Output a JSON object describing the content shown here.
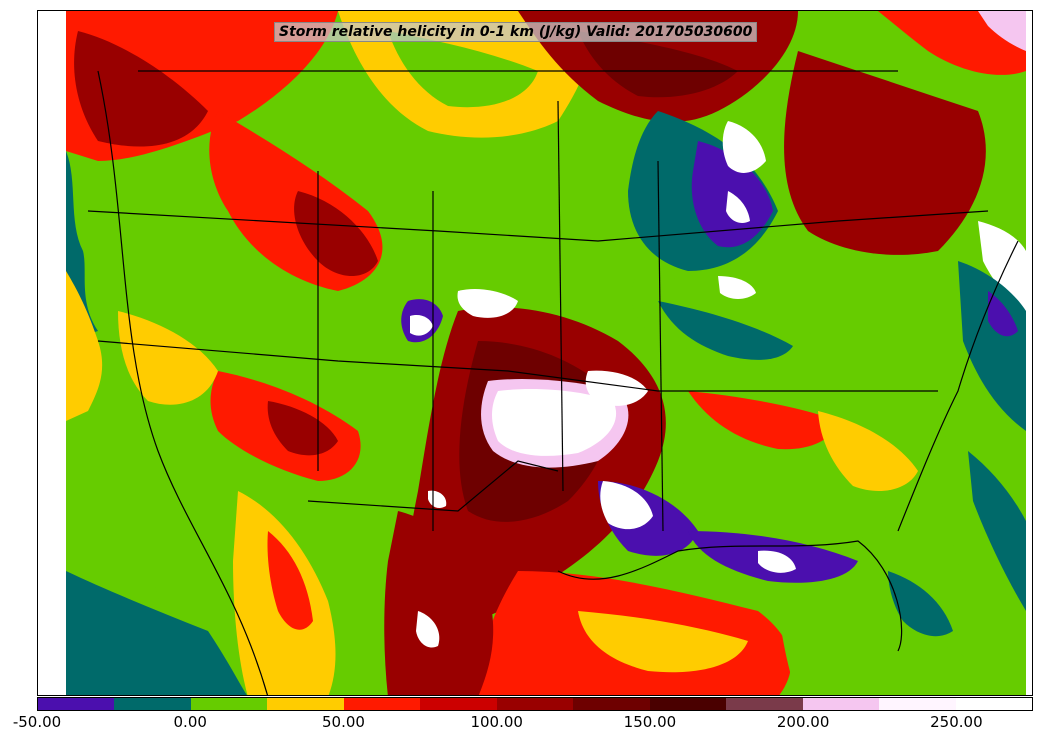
{
  "map": {
    "title": "Storm relative helicity in 0-1 km (J/kg) Valid: 201705030600",
    "region": "Contiguous United States"
  },
  "legend": {
    "colors": [
      "#4b0fae",
      "#006a6a",
      "#66cc00",
      "#ffcc00",
      "#ff1a00",
      "#cc0000",
      "#990000",
      "#6e0000",
      "#4a0000",
      "#7a3a4a",
      "#f5c6f0",
      "#fff5ff",
      "#ffffff"
    ],
    "tick_labels": [
      "-50.00",
      "0.00",
      "50.00",
      "100.00",
      "150.00",
      "200.00",
      "250.00"
    ],
    "tick_values": [
      -50,
      0,
      50,
      100,
      150,
      200,
      250
    ],
    "range": [
      -50,
      275
    ]
  }
}
